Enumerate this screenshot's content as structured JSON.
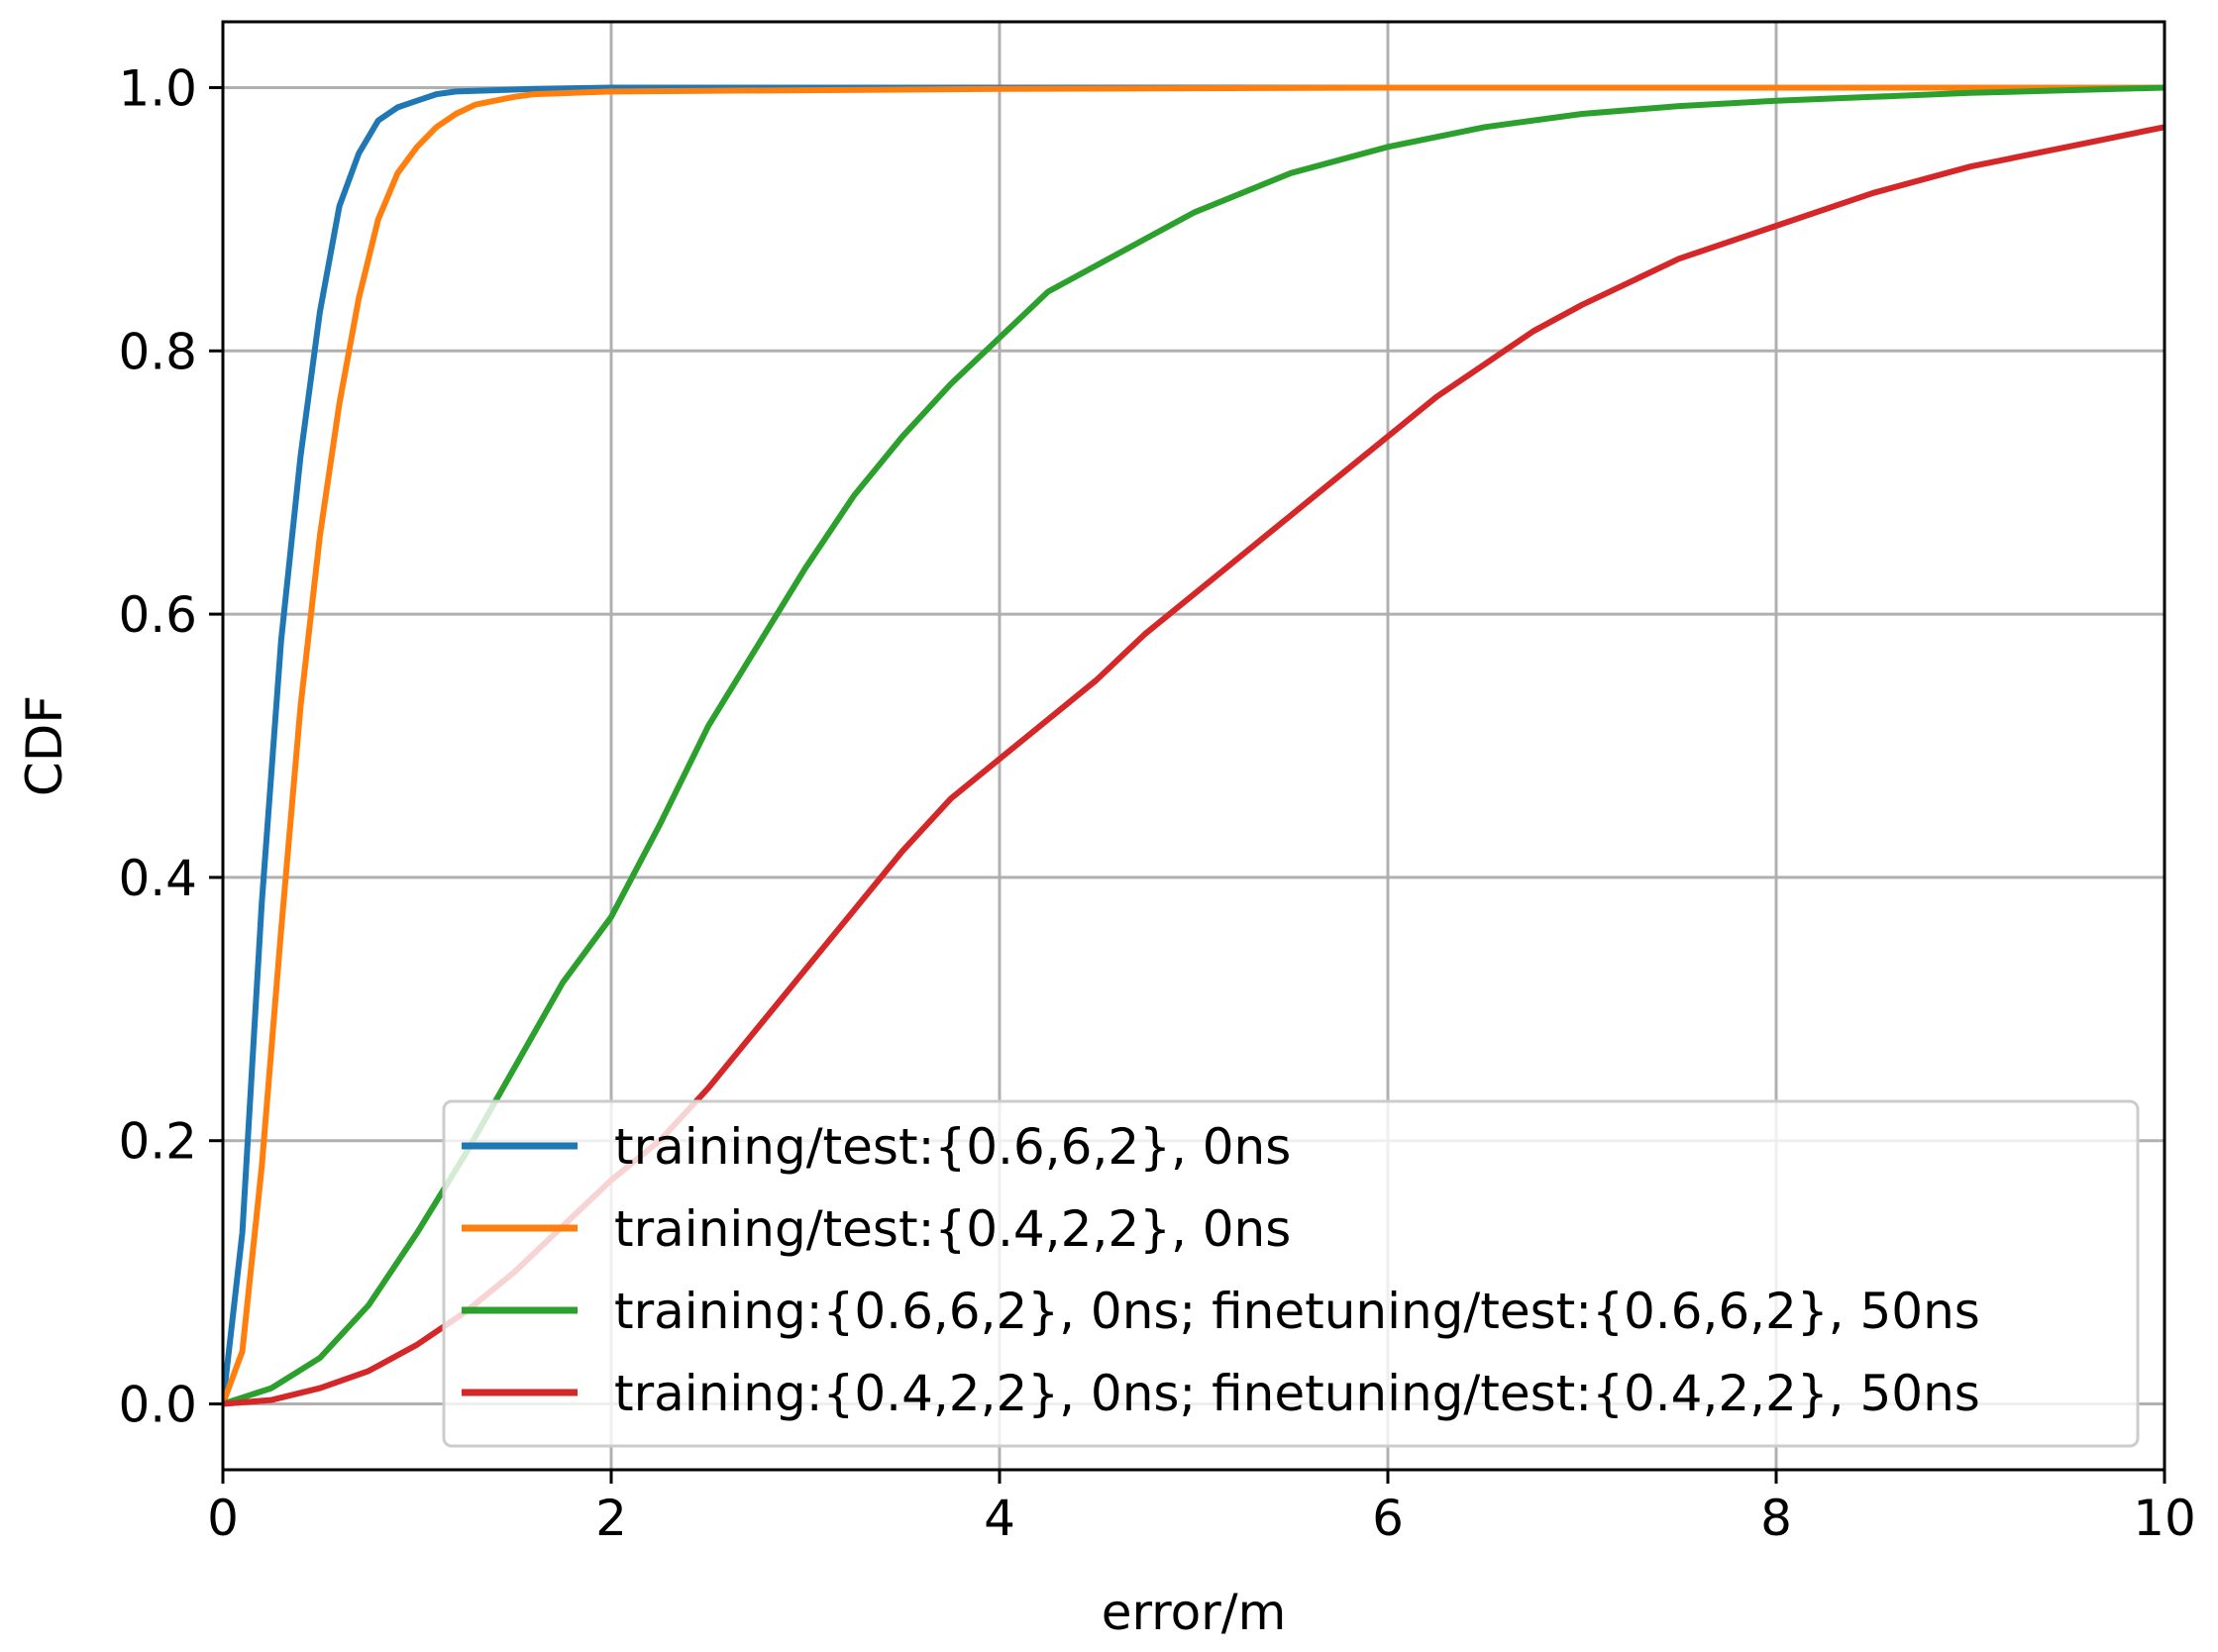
{
  "chart_data": {
    "type": "line",
    "title": "",
    "xlabel": "error/m",
    "ylabel": "CDF",
    "xlim": [
      0,
      10
    ],
    "ylim": [
      -0.05,
      1.05
    ],
    "xticks": [
      0,
      2,
      4,
      6,
      8,
      10
    ],
    "xtick_labels": [
      "0",
      "2",
      "4",
      "6",
      "8",
      "10"
    ],
    "yticks": [
      0.0,
      0.2,
      0.4,
      0.6,
      0.8,
      1.0
    ],
    "ytick_labels": [
      "0.0",
      "0.2",
      "0.4",
      "0.6",
      "0.8",
      "1.0"
    ],
    "grid": true,
    "legend_position": "lower-right",
    "series": [
      {
        "name": "training/test:{0.6,6,2}, 0ns",
        "color": "#1f77b4",
        "x": [
          0,
          0.1,
          0.2,
          0.3,
          0.4,
          0.5,
          0.6,
          0.7,
          0.8,
          0.9,
          1.0,
          1.1,
          1.2,
          1.4,
          1.6,
          2,
          3,
          4,
          6,
          8,
          10
        ],
        "y": [
          0,
          0.13,
          0.38,
          0.58,
          0.72,
          0.83,
          0.91,
          0.95,
          0.975,
          0.985,
          0.99,
          0.995,
          0.997,
          0.998,
          0.999,
          1.0,
          1.0,
          1.0,
          1.0,
          1.0,
          1.0
        ]
      },
      {
        "name": "training/test:{0.4,2,2}, 0ns",
        "color": "#ff7f0e",
        "x": [
          0,
          0.1,
          0.2,
          0.3,
          0.4,
          0.5,
          0.6,
          0.7,
          0.8,
          0.9,
          1.0,
          1.1,
          1.2,
          1.3,
          1.4,
          1.5,
          1.6,
          2,
          3,
          4,
          6,
          8,
          10
        ],
        "y": [
          0,
          0.04,
          0.18,
          0.36,
          0.53,
          0.66,
          0.76,
          0.84,
          0.9,
          0.935,
          0.955,
          0.97,
          0.98,
          0.987,
          0.99,
          0.993,
          0.995,
          0.997,
          0.998,
          0.999,
          1.0,
          1.0,
          1.0
        ]
      },
      {
        "name": "training:{0.6,6,2}, 0ns; finetuning/test:{0.6,6,2}, 50ns",
        "color": "#2ca02c",
        "x": [
          0,
          0.25,
          0.5,
          0.75,
          1.0,
          1.25,
          1.5,
          1.75,
          2.0,
          2.25,
          2.5,
          2.75,
          3.0,
          3.25,
          3.5,
          3.75,
          4.0,
          4.25,
          4.5,
          4.75,
          5.0,
          5.5,
          6.0,
          6.5,
          7.0,
          7.5,
          8.0,
          8.5,
          9.0,
          9.5,
          10.0
        ],
        "y": [
          0,
          0.012,
          0.035,
          0.075,
          0.13,
          0.19,
          0.255,
          0.32,
          0.37,
          0.44,
          0.515,
          0.575,
          0.635,
          0.69,
          0.735,
          0.775,
          0.81,
          0.845,
          0.865,
          0.885,
          0.905,
          0.935,
          0.955,
          0.97,
          0.98,
          0.986,
          0.99,
          0.993,
          0.996,
          0.998,
          1.0
        ]
      },
      {
        "name": "training:{0.4,2,2}, 0ns; finetuning/test:{0.4,2,2}, 50ns",
        "color": "#d62728",
        "x": [
          0,
          0.25,
          0.5,
          0.75,
          1.0,
          1.25,
          1.5,
          1.75,
          2.0,
          2.25,
          2.5,
          2.75,
          3.0,
          3.25,
          3.5,
          3.75,
          4.0,
          4.25,
          4.5,
          4.75,
          5.0,
          5.25,
          5.5,
          5.75,
          6.0,
          6.25,
          6.5,
          6.75,
          7.0,
          7.5,
          8.0,
          8.5,
          9.0,
          9.5,
          10.0
        ],
        "y": [
          0,
          0.003,
          0.012,
          0.025,
          0.045,
          0.07,
          0.1,
          0.135,
          0.17,
          0.2,
          0.24,
          0.285,
          0.33,
          0.375,
          0.42,
          0.46,
          0.49,
          0.52,
          0.55,
          0.585,
          0.615,
          0.645,
          0.675,
          0.705,
          0.735,
          0.765,
          0.79,
          0.815,
          0.835,
          0.87,
          0.895,
          0.92,
          0.94,
          0.955,
          0.97
        ]
      }
    ]
  }
}
